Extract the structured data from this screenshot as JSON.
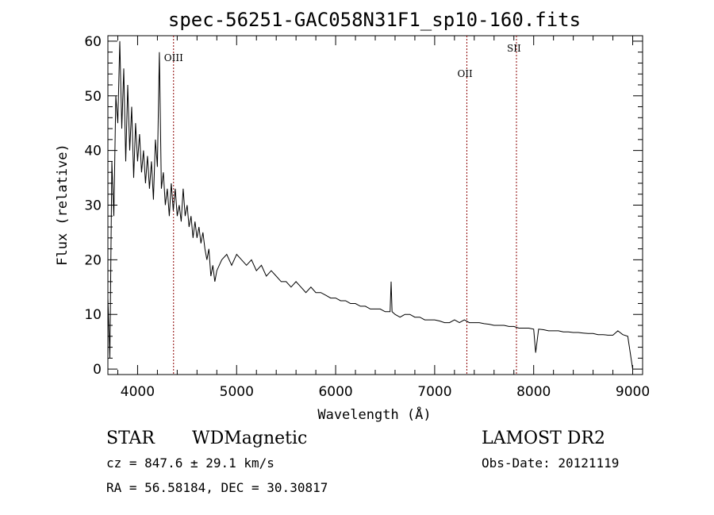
{
  "chart_data": {
    "type": "line",
    "title": "spec-56251-GAC058N31F1_sp10-160.fits",
    "xlabel": "Wavelength (Å)",
    "ylabel": "Flux (relative)",
    "xlim": [
      3700,
      9100
    ],
    "ylim": [
      -1,
      61
    ],
    "x_ticks": [
      4000,
      5000,
      6000,
      7000,
      8000,
      9000
    ],
    "y_ticks": [
      0,
      10,
      20,
      30,
      40,
      50,
      60
    ],
    "grid": false,
    "series": [
      {
        "x": [
          3700,
          3720,
          3740,
          3760,
          3780,
          3800,
          3820,
          3840,
          3860,
          3880,
          3900,
          3920,
          3940,
          3960,
          3980,
          4000,
          4020,
          4040,
          4060,
          4080,
          4100,
          4120,
          4140,
          4160,
          4180,
          4200,
          4220,
          4240,
          4260,
          4280,
          4300,
          4320,
          4340,
          4360,
          4380,
          4400,
          4420,
          4440,
          4460,
          4480,
          4500,
          4520,
          4540,
          4560,
          4580,
          4600,
          4620,
          4640,
          4660,
          4680,
          4700,
          4720,
          4740,
          4760,
          4780,
          4800,
          4850,
          4900,
          4950,
          5000,
          5050,
          5100,
          5150,
          5200,
          5250,
          5300,
          5350,
          5400,
          5450,
          5500,
          5550,
          5600,
          5650,
          5700,
          5750,
          5800,
          5850,
          5900,
          5950,
          6000,
          6050,
          6100,
          6150,
          6200,
          6250,
          6300,
          6350,
          6400,
          6450,
          6500,
          6550,
          6560,
          6570,
          6600,
          6650,
          6700,
          6750,
          6800,
          6850,
          6900,
          6950,
          7000,
          7050,
          7100,
          7150,
          7200,
          7250,
          7300,
          7350,
          7400,
          7450,
          7500,
          7550,
          7600,
          7650,
          7700,
          7750,
          7800,
          7850,
          7900,
          7950,
          8000,
          8020,
          8050,
          8100,
          8150,
          8200,
          8250,
          8300,
          8350,
          8400,
          8450,
          8500,
          8550,
          8600,
          8650,
          8700,
          8750,
          8800,
          8850,
          8900,
          8950,
          9000
        ],
        "y": [
          13,
          2,
          38,
          28,
          50,
          45,
          60,
          44,
          55,
          38,
          52,
          40,
          48,
          35,
          45,
          38,
          43,
          36,
          40,
          34,
          39,
          33,
          38,
          31,
          42,
          37,
          58,
          33,
          36,
          30,
          33,
          28,
          34,
          29,
          33,
          28,
          30,
          27,
          33,
          28,
          30,
          26,
          28,
          24,
          27,
          24,
          26,
          23,
          25,
          22,
          20,
          22,
          17,
          19,
          16,
          18,
          20,
          21,
          19,
          21,
          20,
          19,
          20,
          18,
          19,
          17,
          18,
          17,
          16,
          16,
          15,
          16,
          15,
          14,
          15,
          14,
          14,
          13.5,
          13,
          13,
          12.5,
          12.5,
          12,
          12,
          11.5,
          11.5,
          11,
          11,
          11,
          10.5,
          10.5,
          16,
          10.5,
          10,
          9.5,
          10,
          10,
          9.5,
          9.5,
          9,
          9,
          9,
          8.8,
          8.5,
          8.5,
          9,
          8.5,
          9,
          8.5,
          8.5,
          8.5,
          8.3,
          8.2,
          8,
          8,
          8,
          7.8,
          7.8,
          7.5,
          7.5,
          7.5,
          7.3,
          3,
          7.3,
          7.2,
          7,
          7,
          7,
          6.8,
          6.8,
          6.7,
          6.7,
          6.6,
          6.5,
          6.5,
          6.3,
          6.3,
          6.2,
          6.2,
          7,
          6.3,
          6,
          0
        ]
      }
    ],
    "lines": [
      {
        "label": "OIII",
        "x": 4363
      },
      {
        "label": "OII",
        "x": 7325
      },
      {
        "label": "SII",
        "x": 7826
      }
    ],
    "info": {
      "class": "STAR",
      "subclass": "WDMagnetic",
      "survey": "LAMOST DR2",
      "cz": "cz = 847.6 ± 29.1 km/s",
      "obs_date": "Obs-Date: 20121119",
      "coords": "RA =  56.58184, DEC =  30.30817"
    }
  }
}
